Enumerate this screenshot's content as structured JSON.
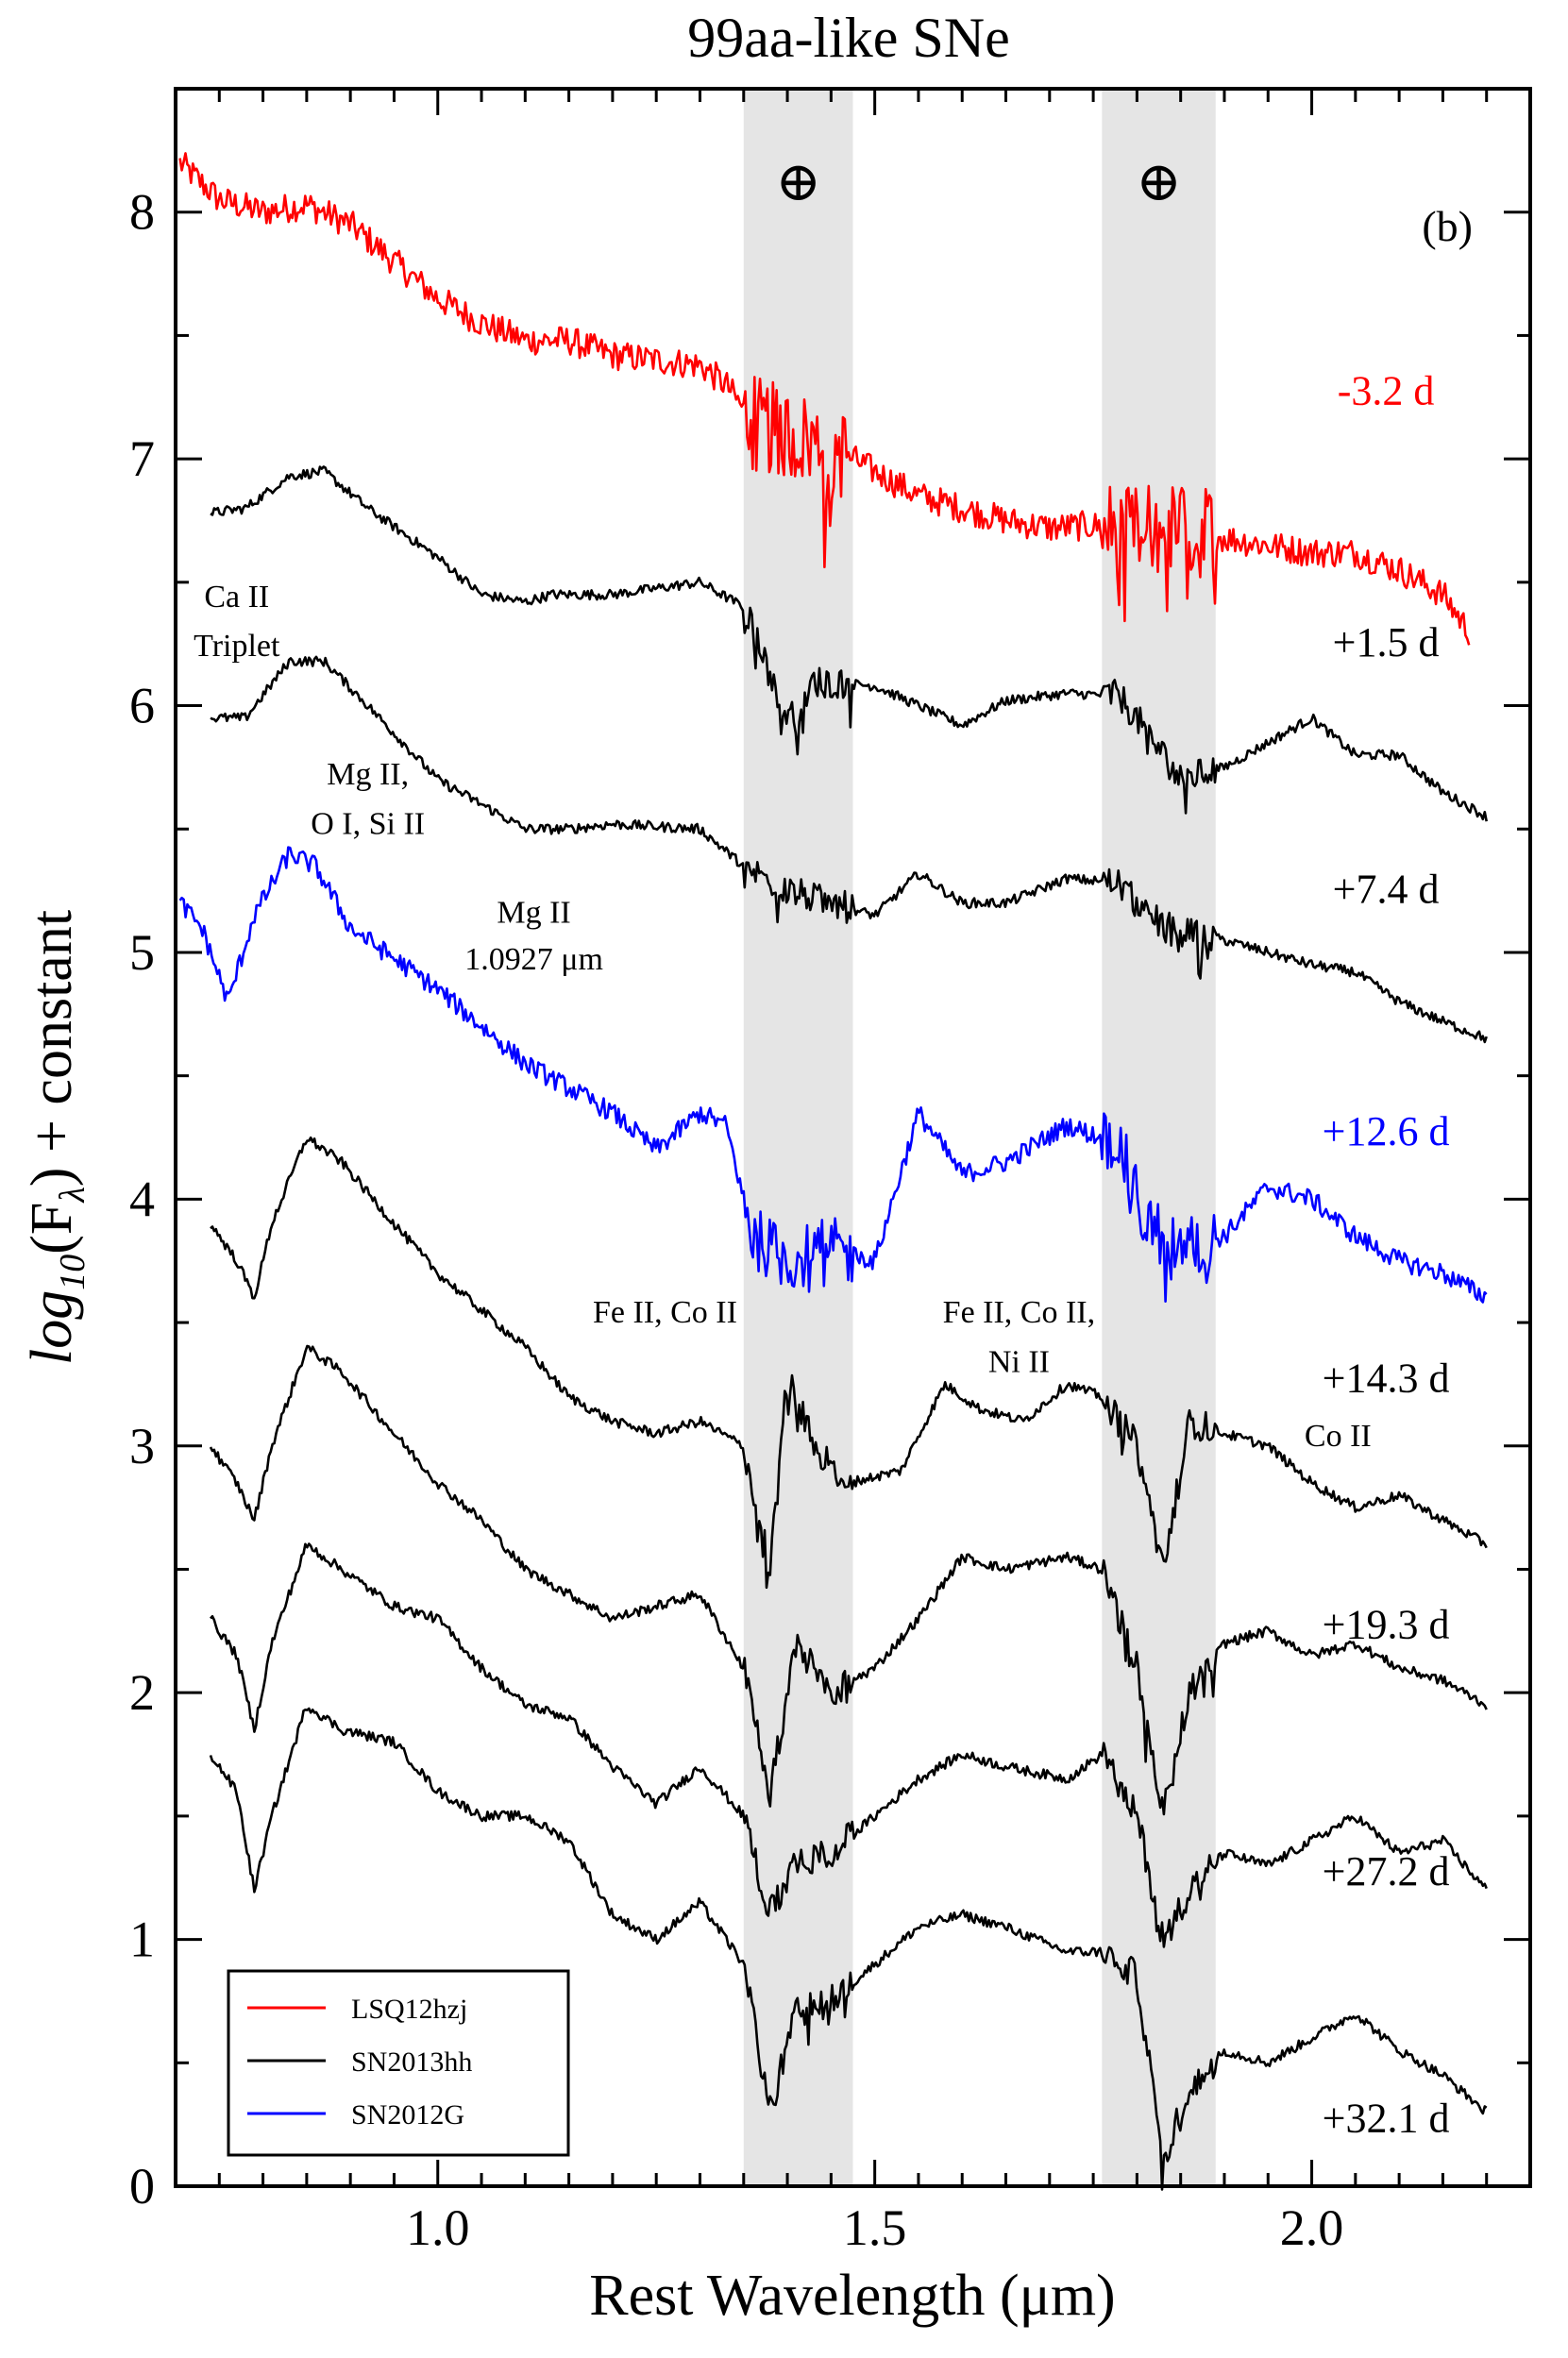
{
  "chart_data": {
    "type": "line",
    "title": "99aa-like SNe",
    "panel_tag": "(b)",
    "xlabel": "Rest Wavelength (μm)",
    "ylabel_prefix": "log",
    "ylabel_sub": "10",
    "ylabel_arg": "(F",
    "ylabel_lambda": "λ",
    "ylabel_suffix": ") + constant",
    "xlim": [
      0.7,
      2.25
    ],
    "ylim": [
      0,
      8.5
    ],
    "x_ticks": [
      1.0,
      1.5,
      2.0
    ],
    "x_tick_labels": [
      "1.0",
      "1.5",
      "2.0"
    ],
    "y_ticks": [
      0,
      1,
      2,
      3,
      4,
      5,
      6,
      7,
      8
    ],
    "y_tick_labels": [
      "0",
      "1",
      "2",
      "3",
      "4",
      "5",
      "6",
      "7",
      "8"
    ],
    "telluric_bands": [
      [
        1.35,
        1.475
      ],
      [
        1.76,
        1.89
      ]
    ],
    "telluric_symbol": "⊕",
    "colors": {
      "LSQ12hzj": "#ff0000",
      "SN2013hh": "#000000",
      "SN2012G": "#0000ff",
      "band": "#dcdcdc"
    },
    "legend": [
      {
        "name": "LSQ12hzj",
        "color": "#ff0000"
      },
      {
        "name": "SN2013hh",
        "color": "#000000"
      },
      {
        "name": "SN2012G",
        "color": "#0000ff"
      }
    ],
    "series": [
      {
        "name": "LSQ12hzj",
        "phase": "-3.2 d",
        "color": "#ff0000",
        "noise": 0.06,
        "phase_at": [
          2.02,
          7.22
        ],
        "points": [
          [
            0.705,
            8.2
          ],
          [
            0.75,
            8.05
          ],
          [
            0.8,
            8.0
          ],
          [
            0.85,
            8.03
          ],
          [
            0.9,
            7.95
          ],
          [
            0.95,
            7.8
          ],
          [
            1.0,
            7.65
          ],
          [
            1.05,
            7.55
          ],
          [
            1.1,
            7.48
          ],
          [
            1.15,
            7.48
          ],
          [
            1.2,
            7.42
          ],
          [
            1.25,
            7.4
          ],
          [
            1.3,
            7.38
          ],
          [
            1.33,
            7.3
          ],
          [
            1.36,
            7.15
          ],
          [
            1.4,
            7.1
          ],
          [
            1.45,
            7.05
          ],
          [
            1.5,
            6.95
          ],
          [
            1.55,
            6.85
          ],
          [
            1.6,
            6.8
          ],
          [
            1.65,
            6.75
          ],
          [
            1.7,
            6.72
          ],
          [
            1.75,
            6.73
          ],
          [
            1.8,
            6.7
          ],
          [
            1.85,
            6.72
          ],
          [
            1.9,
            6.68
          ],
          [
            1.95,
            6.65
          ],
          [
            2.0,
            6.62
          ],
          [
            2.05,
            6.62
          ],
          [
            2.1,
            6.55
          ],
          [
            2.15,
            6.45
          ],
          [
            2.18,
            6.3
          ]
        ]
      },
      {
        "name": "SN2013hh",
        "phase": "+1.5 d",
        "color": "#000000",
        "noise": 0.02,
        "phase_at": [
          2.02,
          6.2
        ],
        "points": [
          [
            0.74,
            6.78
          ],
          [
            0.78,
            6.8
          ],
          [
            0.83,
            6.93
          ],
          [
            0.87,
            6.95
          ],
          [
            0.92,
            6.8
          ],
          [
            1.0,
            6.6
          ],
          [
            1.05,
            6.45
          ],
          [
            1.1,
            6.42
          ],
          [
            1.13,
            6.45
          ],
          [
            1.2,
            6.45
          ],
          [
            1.3,
            6.5
          ],
          [
            1.35,
            6.4
          ],
          [
            1.37,
            6.25
          ],
          [
            1.39,
            6.0
          ],
          [
            1.41,
            5.95
          ],
          [
            1.43,
            6.1
          ],
          [
            1.5,
            6.08
          ],
          [
            1.55,
            6.0
          ],
          [
            1.6,
            5.92
          ],
          [
            1.65,
            6.02
          ],
          [
            1.72,
            6.05
          ],
          [
            1.78,
            6.04
          ],
          [
            1.81,
            5.9
          ],
          [
            1.85,
            5.7
          ],
          [
            1.9,
            5.75
          ],
          [
            1.95,
            5.85
          ],
          [
            2.0,
            5.95
          ],
          [
            2.05,
            5.8
          ],
          [
            2.1,
            5.8
          ],
          [
            2.15,
            5.65
          ],
          [
            2.2,
            5.55
          ]
        ]
      },
      {
        "name": "SN2013hh",
        "phase": "+7.4 d",
        "color": "#000000",
        "noise": 0.02,
        "phase_at": [
          2.02,
          5.2
        ],
        "points": [
          [
            0.74,
            5.95
          ],
          [
            0.78,
            5.95
          ],
          [
            0.83,
            6.18
          ],
          [
            0.87,
            6.18
          ],
          [
            0.92,
            6.0
          ],
          [
            1.0,
            5.7
          ],
          [
            1.05,
            5.6
          ],
          [
            1.1,
            5.5
          ],
          [
            1.15,
            5.5
          ],
          [
            1.2,
            5.52
          ],
          [
            1.3,
            5.5
          ],
          [
            1.35,
            5.35
          ],
          [
            1.4,
            5.25
          ],
          [
            1.45,
            5.2
          ],
          [
            1.5,
            5.15
          ],
          [
            1.55,
            5.32
          ],
          [
            1.6,
            5.2
          ],
          [
            1.65,
            5.2
          ],
          [
            1.72,
            5.3
          ],
          [
            1.78,
            5.28
          ],
          [
            1.81,
            5.15
          ],
          [
            1.85,
            5.08
          ],
          [
            1.9,
            5.05
          ],
          [
            1.95,
            5.0
          ],
          [
            2.0,
            4.95
          ],
          [
            2.05,
            4.92
          ],
          [
            2.1,
            4.8
          ],
          [
            2.15,
            4.72
          ],
          [
            2.2,
            4.65
          ]
        ]
      },
      {
        "name": "SN2012G",
        "phase": "+12.6 d",
        "color": "#0000ff",
        "noise": 0.04,
        "phase_at": [
          2.02,
          4.22
        ],
        "points": [
          [
            0.705,
            5.2
          ],
          [
            0.73,
            5.1
          ],
          [
            0.76,
            4.8
          ],
          [
            0.79,
            5.15
          ],
          [
            0.83,
            5.4
          ],
          [
            0.86,
            5.35
          ],
          [
            0.9,
            5.1
          ],
          [
            1.0,
            4.85
          ],
          [
            1.1,
            4.55
          ],
          [
            1.15,
            4.45
          ],
          [
            1.2,
            4.35
          ],
          [
            1.25,
            4.2
          ],
          [
            1.3,
            4.35
          ],
          [
            1.33,
            4.3
          ],
          [
            1.36,
            3.85
          ],
          [
            1.4,
            3.75
          ],
          [
            1.45,
            3.8
          ],
          [
            1.5,
            3.75
          ],
          [
            1.55,
            4.35
          ],
          [
            1.6,
            4.1
          ],
          [
            1.65,
            4.15
          ],
          [
            1.72,
            4.3
          ],
          [
            1.78,
            4.22
          ],
          [
            1.81,
            3.9
          ],
          [
            1.85,
            3.8
          ],
          [
            1.9,
            3.85
          ],
          [
            1.95,
            4.05
          ],
          [
            2.0,
            4.0
          ],
          [
            2.05,
            3.85
          ],
          [
            2.1,
            3.75
          ],
          [
            2.15,
            3.7
          ],
          [
            2.2,
            3.6
          ]
        ]
      },
      {
        "name": "SN2013hh",
        "phase": "+14.3 d",
        "color": "#000000",
        "noise": 0.02,
        "phase_at": [
          2.02,
          3.22
        ],
        "points": [
          [
            0.74,
            3.9
          ],
          [
            0.77,
            3.75
          ],
          [
            0.79,
            3.6
          ],
          [
            0.81,
            3.9
          ],
          [
            0.85,
            4.25
          ],
          [
            0.89,
            4.15
          ],
          [
            0.95,
            3.9
          ],
          [
            1.0,
            3.7
          ],
          [
            1.1,
            3.4
          ],
          [
            1.15,
            3.2
          ],
          [
            1.2,
            3.1
          ],
          [
            1.25,
            3.05
          ],
          [
            1.3,
            3.1
          ],
          [
            1.35,
            3.0
          ],
          [
            1.38,
            2.5
          ],
          [
            1.4,
            3.3
          ],
          [
            1.43,
            3.0
          ],
          [
            1.47,
            2.85
          ],
          [
            1.53,
            2.9
          ],
          [
            1.58,
            3.25
          ],
          [
            1.62,
            3.15
          ],
          [
            1.67,
            3.1
          ],
          [
            1.72,
            3.25
          ],
          [
            1.76,
            3.2
          ],
          [
            1.8,
            3.0
          ],
          [
            1.83,
            2.5
          ],
          [
            1.86,
            3.1
          ],
          [
            1.9,
            3.05
          ],
          [
            1.95,
            3.0
          ],
          [
            2.0,
            2.85
          ],
          [
            2.05,
            2.75
          ],
          [
            2.1,
            2.8
          ],
          [
            2.15,
            2.7
          ],
          [
            2.2,
            2.6
          ]
        ]
      },
      {
        "name": "SN2013hh",
        "phase": "+19.3 d",
        "color": "#000000",
        "noise": 0.02,
        "phase_at": [
          2.02,
          2.22
        ],
        "points": [
          [
            0.74,
            3.0
          ],
          [
            0.77,
            2.85
          ],
          [
            0.79,
            2.7
          ],
          [
            0.81,
            3.0
          ],
          [
            0.85,
            3.4
          ],
          [
            0.89,
            3.3
          ],
          [
            0.95,
            3.05
          ],
          [
            1.0,
            2.85
          ],
          [
            1.05,
            2.7
          ],
          [
            1.1,
            2.5
          ],
          [
            1.15,
            2.4
          ],
          [
            1.2,
            2.3
          ],
          [
            1.25,
            2.35
          ],
          [
            1.3,
            2.4
          ],
          [
            1.35,
            2.1
          ],
          [
            1.38,
            1.6
          ],
          [
            1.41,
            2.2
          ],
          [
            1.45,
            2.0
          ],
          [
            1.5,
            2.1
          ],
          [
            1.55,
            2.3
          ],
          [
            1.6,
            2.55
          ],
          [
            1.65,
            2.5
          ],
          [
            1.72,
            2.55
          ],
          [
            1.76,
            2.5
          ],
          [
            1.8,
            2.1
          ],
          [
            1.83,
            1.5
          ],
          [
            1.86,
            2.0
          ],
          [
            1.9,
            2.2
          ],
          [
            1.95,
            2.25
          ],
          [
            2.0,
            2.15
          ],
          [
            2.05,
            2.2
          ],
          [
            2.1,
            2.1
          ],
          [
            2.15,
            2.05
          ],
          [
            2.2,
            1.95
          ]
        ]
      },
      {
        "name": "SN2013hh",
        "phase": "+27.2 d",
        "color": "#000000",
        "noise": 0.02,
        "phase_at": [
          2.02,
          1.22
        ],
        "points": [
          [
            0.74,
            2.3
          ],
          [
            0.77,
            2.15
          ],
          [
            0.79,
            1.85
          ],
          [
            0.81,
            2.2
          ],
          [
            0.85,
            2.6
          ],
          [
            0.89,
            2.5
          ],
          [
            0.95,
            2.35
          ],
          [
            1.0,
            2.3
          ],
          [
            1.05,
            2.1
          ],
          [
            1.1,
            1.95
          ],
          [
            1.15,
            1.9
          ],
          [
            1.2,
            1.7
          ],
          [
            1.25,
            1.55
          ],
          [
            1.3,
            1.7
          ],
          [
            1.35,
            1.5
          ],
          [
            1.38,
            1.1
          ],
          [
            1.41,
            1.3
          ],
          [
            1.45,
            1.35
          ],
          [
            1.5,
            1.5
          ],
          [
            1.55,
            1.65
          ],
          [
            1.6,
            1.75
          ],
          [
            1.65,
            1.7
          ],
          [
            1.72,
            1.65
          ],
          [
            1.76,
            1.75
          ],
          [
            1.8,
            1.5
          ],
          [
            1.83,
            1.0
          ],
          [
            1.86,
            1.2
          ],
          [
            1.9,
            1.35
          ],
          [
            1.95,
            1.3
          ],
          [
            2.0,
            1.4
          ],
          [
            2.05,
            1.5
          ],
          [
            2.1,
            1.35
          ],
          [
            2.15,
            1.4
          ],
          [
            2.2,
            1.2
          ]
        ]
      },
      {
        "name": "SN2013hh",
        "phase": "+32.1 d",
        "color": "#000000",
        "noise": 0.02,
        "phase_at": [
          2.02,
          0.22
        ],
        "points": [
          [
            0.74,
            1.75
          ],
          [
            0.77,
            1.6
          ],
          [
            0.79,
            1.2
          ],
          [
            0.81,
            1.5
          ],
          [
            0.85,
            1.95
          ],
          [
            0.89,
            1.85
          ],
          [
            0.95,
            1.8
          ],
          [
            1.0,
            1.6
          ],
          [
            1.05,
            1.5
          ],
          [
            1.1,
            1.5
          ],
          [
            1.15,
            1.4
          ],
          [
            1.2,
            1.1
          ],
          [
            1.25,
            1.0
          ],
          [
            1.3,
            1.15
          ],
          [
            1.35,
            0.9
          ],
          [
            1.38,
            0.3
          ],
          [
            1.41,
            0.7
          ],
          [
            1.45,
            0.75
          ],
          [
            1.5,
            0.9
          ],
          [
            1.55,
            1.05
          ],
          [
            1.6,
            1.1
          ],
          [
            1.65,
            1.05
          ],
          [
            1.72,
            0.95
          ],
          [
            1.76,
            0.95
          ],
          [
            1.8,
            0.85
          ],
          [
            1.83,
            0.1
          ],
          [
            1.86,
            0.4
          ],
          [
            1.9,
            0.55
          ],
          [
            1.95,
            0.5
          ],
          [
            2.0,
            0.6
          ],
          [
            2.05,
            0.7
          ],
          [
            2.1,
            0.55
          ],
          [
            2.15,
            0.45
          ],
          [
            2.2,
            0.3
          ]
        ]
      }
    ],
    "annotations": [
      {
        "text": "Ca II",
        "x": 0.77,
        "y": 6.4
      },
      {
        "text": "Triplet",
        "x": 0.77,
        "y": 6.2
      },
      {
        "text": "Mg II,",
        "x": 0.92,
        "y": 5.68
      },
      {
        "text": "O I, Si II",
        "x": 0.92,
        "y": 5.48
      },
      {
        "text": "Mg II",
        "x": 1.11,
        "y": 5.12
      },
      {
        "text": "1.0927 μm",
        "x": 1.11,
        "y": 4.93
      },
      {
        "text": "Fe II, Co II",
        "x": 1.26,
        "y": 3.5
      },
      {
        "text": "Fe II, Co II,",
        "x": 1.665,
        "y": 3.5
      },
      {
        "text": "Ni II",
        "x": 1.665,
        "y": 3.3
      },
      {
        "text": "Co II",
        "x": 2.03,
        "y": 3.0
      }
    ]
  }
}
